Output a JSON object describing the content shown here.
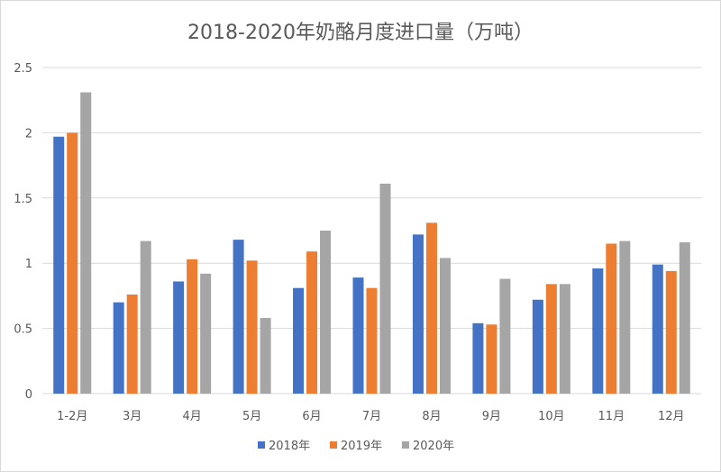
{
  "chart_data": {
    "type": "bar",
    "title": "2018-2020年奶酪月度进口量（万吨）",
    "xlabel": "",
    "ylabel": "",
    "ylim": [
      0,
      2.5
    ],
    "yticks": [
      "0",
      "0.5",
      "1",
      "1.5",
      "2",
      "2.5"
    ],
    "grid": true,
    "legend": "bottom",
    "categories": [
      "1-2月",
      "3月",
      "4月",
      "5月",
      "6月",
      "7月",
      "8月",
      "9月",
      "10月",
      "11月",
      "12月"
    ],
    "series": [
      {
        "name": "2018年",
        "color": "#4472c4",
        "values": [
          1.97,
          0.7,
          0.86,
          1.18,
          0.81,
          0.89,
          1.22,
          0.54,
          0.72,
          0.96,
          0.99
        ]
      },
      {
        "name": "2019年",
        "color": "#ed7d31",
        "values": [
          2.0,
          0.76,
          1.03,
          1.02,
          1.09,
          0.81,
          1.31,
          0.53,
          0.84,
          1.15,
          0.94
        ]
      },
      {
        "name": "2020年",
        "color": "#a5a5a5",
        "values": [
          2.31,
          1.17,
          0.92,
          0.58,
          1.25,
          1.61,
          1.04,
          0.88,
          0.84,
          1.17,
          1.16
        ]
      }
    ]
  }
}
